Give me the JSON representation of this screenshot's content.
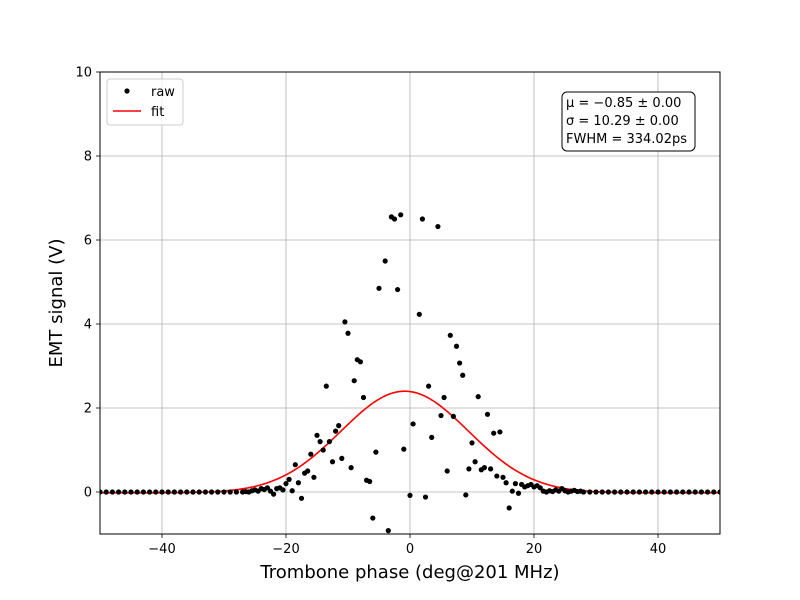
{
  "chart_data": {
    "type": "scatter",
    "title": "",
    "xlabel": "Trombone phase (deg@201 MHz)",
    "ylabel": "EMT signal (V)",
    "xlim": [
      -50,
      50
    ],
    "ylim": [
      -1,
      10
    ],
    "xticks": [
      -40,
      -20,
      0,
      20,
      40
    ],
    "yticks": [
      0,
      2,
      4,
      6,
      8,
      10
    ],
    "xtick_labels": [
      "−40",
      "−20",
      "0",
      "20",
      "40"
    ],
    "ytick_labels": [
      "0",
      "2",
      "4",
      "6",
      "8",
      "10"
    ],
    "grid": true,
    "legend_position": "top-left",
    "series": [
      {
        "name": "raw",
        "kind": "scatter",
        "color": "#000000",
        "points": [
          [
            -50,
            0
          ],
          [
            -49,
            0
          ],
          [
            -48,
            0
          ],
          [
            -47,
            0
          ],
          [
            -46,
            0
          ],
          [
            -45,
            0
          ],
          [
            -44,
            0
          ],
          [
            -43,
            0
          ],
          [
            -42,
            0
          ],
          [
            -41,
            0
          ],
          [
            -40,
            0
          ],
          [
            -39,
            0
          ],
          [
            -38,
            0
          ],
          [
            -37,
            0
          ],
          [
            -36,
            0
          ],
          [
            -35,
            0
          ],
          [
            -34,
            0
          ],
          [
            -33,
            0
          ],
          [
            -32,
            0
          ],
          [
            -31,
            0
          ],
          [
            -30,
            0
          ],
          [
            -29,
            0
          ],
          [
            -28,
            0
          ],
          [
            -27,
            0
          ],
          [
            -26.5,
            0.01
          ],
          [
            -26,
            0
          ],
          [
            -25.5,
            0.03
          ],
          [
            -25,
            0.05
          ],
          [
            -24.5,
            0.02
          ],
          [
            -24,
            0.08
          ],
          [
            -23.5,
            0.06
          ],
          [
            -23,
            0.1
          ],
          [
            -22.5,
            0.02
          ],
          [
            -22,
            -0.05
          ],
          [
            -21.5,
            0.08
          ],
          [
            -21,
            0.1
          ],
          [
            -20.5,
            0.05
          ],
          [
            -20,
            0.2
          ],
          [
            -19.5,
            0.3
          ],
          [
            -19,
            0.03
          ],
          [
            -18.5,
            0.65
          ],
          [
            -18,
            0.22
          ],
          [
            -17.5,
            -0.15
          ],
          [
            -17,
            0.45
          ],
          [
            -16.5,
            0.5
          ],
          [
            -16,
            0.9
          ],
          [
            -15.5,
            0.35
          ],
          [
            -15,
            1.35
          ],
          [
            -14.5,
            1.2
          ],
          [
            -14,
            1.0
          ],
          [
            -13.5,
            2.52
          ],
          [
            -13,
            1.2
          ],
          [
            -12.5,
            0.72
          ],
          [
            -12,
            1.45
          ],
          [
            -11.5,
            1.58
          ],
          [
            -11,
            0.8
          ],
          [
            -10.5,
            4.05
          ],
          [
            -10,
            3.78
          ],
          [
            -9.5,
            0.58
          ],
          [
            -9,
            2.65
          ],
          [
            -8.5,
            3.15
          ],
          [
            -8,
            3.1
          ],
          [
            -7.5,
            2.25
          ],
          [
            -7,
            0.28
          ],
          [
            -6.5,
            0.25
          ],
          [
            -6,
            -0.62
          ],
          [
            -5.5,
            0.95
          ],
          [
            -5,
            4.85
          ],
          [
            -4,
            5.5
          ],
          [
            -3.5,
            -0.92
          ],
          [
            -3,
            6.55
          ],
          [
            -2.5,
            6.5
          ],
          [
            -2,
            4.82
          ],
          [
            -1.5,
            6.6
          ],
          [
            -1,
            1.02
          ],
          [
            0,
            -0.08
          ],
          [
            0.5,
            1.62
          ],
          [
            1.5,
            4.23
          ],
          [
            2,
            6.5
          ],
          [
            2.5,
            -0.12
          ],
          [
            3,
            2.52
          ],
          [
            3.5,
            1.3
          ],
          [
            4.5,
            6.32
          ],
          [
            5,
            1.82
          ],
          [
            5.5,
            2.25
          ],
          [
            6,
            0.5
          ],
          [
            6.5,
            3.73
          ],
          [
            7,
            1.8
          ],
          [
            7.5,
            3.47
          ],
          [
            8,
            3.07
          ],
          [
            8.5,
            2.78
          ],
          [
            9,
            -0.07
          ],
          [
            9.5,
            0.55
          ],
          [
            10,
            1.17
          ],
          [
            10.5,
            0.72
          ],
          [
            11,
            2.27
          ],
          [
            11.5,
            0.53
          ],
          [
            12,
            0.58
          ],
          [
            12.5,
            1.85
          ],
          [
            13,
            0.55
          ],
          [
            13.5,
            1.4
          ],
          [
            14,
            0.38
          ],
          [
            14.5,
            1.43
          ],
          [
            15,
            0.35
          ],
          [
            15.5,
            0.22
          ],
          [
            16,
            -0.38
          ],
          [
            16.5,
            0.02
          ],
          [
            17,
            0.2
          ],
          [
            17.5,
            -0.03
          ],
          [
            18,
            0.18
          ],
          [
            18.5,
            0.12
          ],
          [
            19,
            0.15
          ],
          [
            19.5,
            0.18
          ],
          [
            20,
            0.12
          ],
          [
            20.5,
            0.15
          ],
          [
            21,
            0.1
          ],
          [
            21.5,
            0.02
          ],
          [
            22,
            0
          ],
          [
            22.5,
            0.03
          ],
          [
            23,
            0.01
          ],
          [
            23.5,
            0.05
          ],
          [
            24,
            0.02
          ],
          [
            24.5,
            0.08
          ],
          [
            25,
            0.03
          ],
          [
            25.5,
            0
          ],
          [
            26,
            0.02
          ],
          [
            26.5,
            0.04
          ],
          [
            27,
            0.01
          ],
          [
            27.5,
            0.02
          ],
          [
            28,
            0
          ],
          [
            29,
            0
          ],
          [
            30,
            0
          ],
          [
            31,
            0
          ],
          [
            32,
            0
          ],
          [
            33,
            0
          ],
          [
            34,
            0
          ],
          [
            35,
            0
          ],
          [
            36,
            0
          ],
          [
            37,
            0
          ],
          [
            38,
            0
          ],
          [
            39,
            0
          ],
          [
            40,
            0
          ],
          [
            41,
            0
          ],
          [
            42,
            0
          ],
          [
            43,
            0
          ],
          [
            44,
            0
          ],
          [
            45,
            0
          ],
          [
            46,
            0
          ],
          [
            47,
            0
          ],
          [
            48,
            0
          ],
          [
            49,
            0
          ],
          [
            50,
            0
          ]
        ]
      },
      {
        "name": "fit",
        "kind": "line",
        "color": "#ff0000",
        "model": "gaussian",
        "amplitude": 2.42,
        "mu": -0.85,
        "sigma": 10.29,
        "offset": -0.02
      }
    ],
    "annotation": {
      "lines": [
        "μ = −0.85 ± 0.00",
        "σ = 10.29 ± 0.00",
        "FWHM = 334.02ps"
      ]
    }
  }
}
